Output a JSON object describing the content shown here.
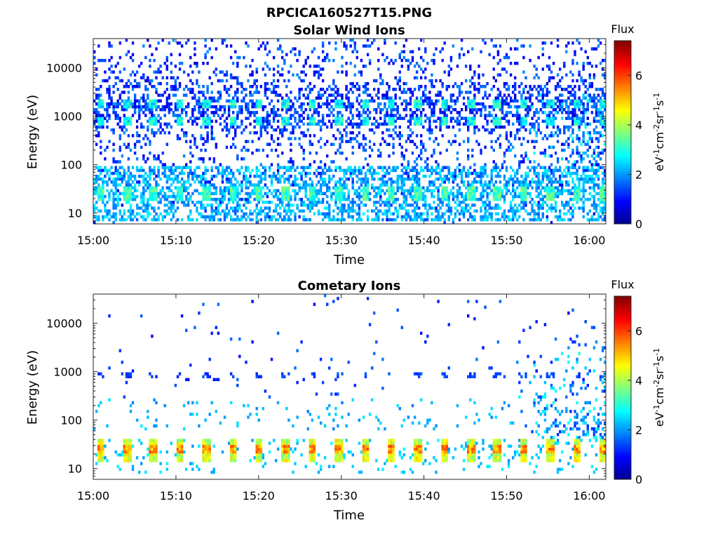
{
  "figure": {
    "filename": "RPCICA160527T15.PNG"
  },
  "chart_data": [
    {
      "type": "heatmap",
      "title": "Solar Wind Ions",
      "xlabel": "Time",
      "ylabel": "Energy (eV)",
      "x_ticks": [
        "15:00",
        "15:10",
        "15:20",
        "15:30",
        "15:40",
        "15:50",
        "16:00"
      ],
      "xlim": [
        "15:00",
        "16:02"
      ],
      "y_scale": "log",
      "y_ticks": [
        10,
        100,
        1000,
        10000
      ],
      "y_tick_labels": [
        "10",
        "100",
        "1000",
        "10000"
      ],
      "ylim": [
        6,
        40000
      ],
      "colorbar": {
        "title": "Flux",
        "label": "eV-1cm-2sr-1s-1",
        "ticks": [
          0,
          2,
          4,
          6
        ],
        "range": [
          0,
          7.4
        ],
        "colormap": "jet"
      },
      "features": [
        {
          "description": "periodic high-flux patches near 700–900 eV and 1500–2000 eV, repeating every ~3.2 min",
          "energy_eV": [
            700,
            2000
          ],
          "peak_flux": 3
        },
        {
          "description": "periodic green patches near 20–35 eV",
          "energy_eV": [
            20,
            35
          ],
          "peak_flux": 3.5
        },
        {
          "description": "broad scattered background 6 eV–35 keV",
          "energy_eV": [
            6,
            35000
          ],
          "peak_flux": 1.5
        }
      ]
    },
    {
      "type": "heatmap",
      "title": "Cometary Ions",
      "xlabel": "Time",
      "ylabel": "Energy (eV)",
      "x_ticks": [
        "15:00",
        "15:10",
        "15:20",
        "15:30",
        "15:40",
        "15:50",
        "16:00"
      ],
      "xlim": [
        "15:00",
        "16:02"
      ],
      "y_scale": "log",
      "y_ticks": [
        10,
        100,
        1000,
        10000
      ],
      "y_tick_labels": [
        "10",
        "100",
        "1000",
        "10000"
      ],
      "ylim": [
        6,
        40000
      ],
      "colorbar": {
        "title": "Flux",
        "label": "eV-1cm-2sr-1s-1",
        "ticks": [
          0,
          2,
          4,
          6
        ],
        "range": [
          0,
          7.4
        ],
        "colormap": "jet"
      },
      "features": [
        {
          "description": "periodic orange/red blocks 15–40 eV",
          "energy_eV": [
            15,
            40
          ],
          "peak_flux": 5.5
        },
        {
          "description": "sparse blue points near 800–1000 eV",
          "energy_eV": [
            800,
            1000
          ],
          "peak_flux": 1.5
        },
        {
          "description": "increasing broad-energy flux after ~15:50",
          "energy_eV": [
            50,
            5000
          ],
          "peak_flux": 2.5
        }
      ]
    }
  ]
}
